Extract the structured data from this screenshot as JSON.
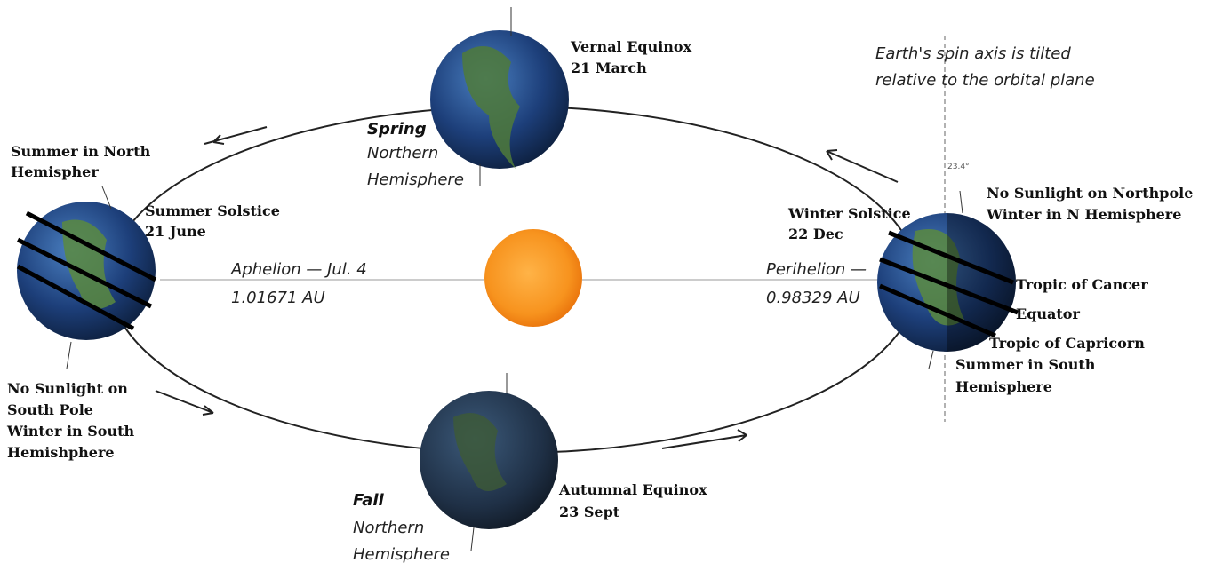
{
  "vernal_equinox": {
    "title": "Vernal Equinox",
    "date": "21 March"
  },
  "spring": {
    "season": "Spring",
    "lines": [
      "Northern",
      "Hemisphere"
    ]
  },
  "tilt_note": {
    "lines": [
      "Earth's spin axis is tilted",
      "relative to the orbital plane"
    ],
    "angle": "23.4°"
  },
  "summer_north": {
    "lines": [
      "Summer in North",
      "Hemispher"
    ]
  },
  "summer_solstice": {
    "title": "Summer Solstice",
    "date": "21 June"
  },
  "winter_solstice": {
    "title": "Winter Solstice",
    "date": "22 Dec"
  },
  "north_pole_note": {
    "lines": [
      "No Sunlight on Northpole",
      "Winter in N Hemisphere"
    ]
  },
  "aphelion": {
    "title": "Aphelion — Jul. 4",
    "distance": "1.01671 AU"
  },
  "perihelion": {
    "title": "Perihelion —",
    "distance": "0.98329 AU"
  },
  "right_earth_labels": {
    "lines": [
      "Tropic of Cancer",
      "Equator",
      "Tropic of Capricorn",
      "Summer in South",
      "Hemisphere"
    ]
  },
  "south_pole_note": {
    "lines": [
      "No Sunlight on",
      "South Pole",
      "Winter in South",
      "Hemishphere"
    ]
  },
  "autumnal_equinox": {
    "title": "Autumnal Equinox",
    "date": "23 Sept"
  },
  "fall": {
    "season": "Fall",
    "lines": [
      "Northern",
      "Hemisphere"
    ]
  }
}
